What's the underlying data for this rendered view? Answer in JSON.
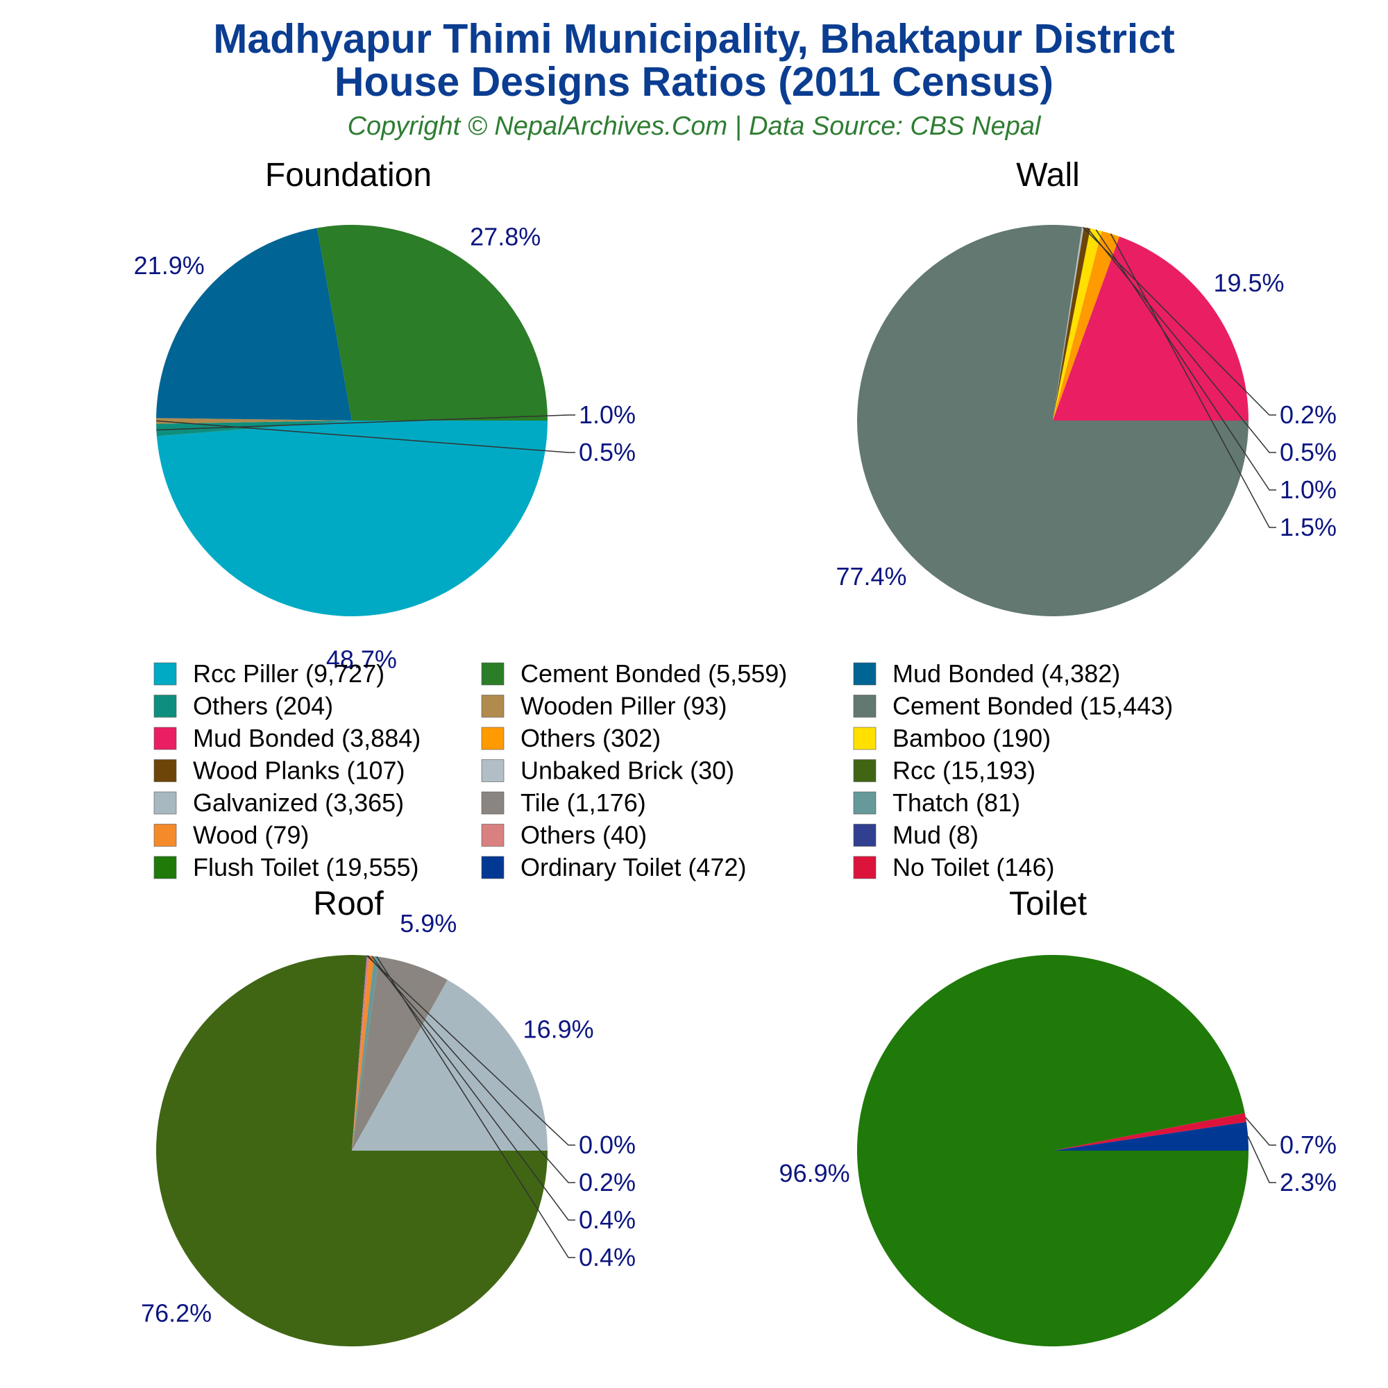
{
  "title_line1": "Madhyapur Thimi Municipality, Bhaktapur District",
  "title_line2": "House Designs Ratios (2011 Census)",
  "subtitle": "Copyright © NepalArchives.Com | Data Source: CBS Nepal",
  "chart_data": [
    {
      "type": "pie",
      "title": "Foundation",
      "slices": [
        {
          "label": "Rcc Piller",
          "value": 9727,
          "pct": "48.7%",
          "color": "#00aac4"
        },
        {
          "label": "Others",
          "value": 204,
          "pct": "1.0%",
          "color": "#0e8f7e"
        },
        {
          "label": "Wooden Piller",
          "value": 93,
          "pct": "0.5%",
          "color": "#b08b4d"
        },
        {
          "label": "Mud Bonded",
          "value": 4382,
          "pct": "21.9%",
          "color": "#006494"
        },
        {
          "label": "Cement Bonded",
          "value": 5559,
          "pct": "27.8%",
          "color": "#2b7d27"
        }
      ]
    },
    {
      "type": "pie",
      "title": "Wall",
      "slices": [
        {
          "label": "Cement Bonded",
          "value": 15443,
          "pct": "77.4%",
          "color": "#627870"
        },
        {
          "label": "Unbaked Brick",
          "value": 30,
          "pct": "0.2%",
          "color": "#b1bec5"
        },
        {
          "label": "Wood Planks",
          "value": 107,
          "pct": "0.5%",
          "color": "#6e4508"
        },
        {
          "label": "Bamboo",
          "value": 190,
          "pct": "1.0%",
          "color": "#ffe000"
        },
        {
          "label": "Others",
          "value": 302,
          "pct": "1.5%",
          "color": "#ff9a00"
        },
        {
          "label": "Mud Bonded",
          "value": 3884,
          "pct": "19.5%",
          "color": "#e91e63"
        }
      ]
    },
    {
      "type": "pie",
      "title": "Roof",
      "slices": [
        {
          "label": "Rcc",
          "value": 15193,
          "pct": "76.2%",
          "color": "#406614"
        },
        {
          "label": "Mud",
          "value": 8,
          "pct": "0.0%",
          "color": "#303f8f"
        },
        {
          "label": "Others",
          "value": 40,
          "pct": "0.2%",
          "color": "#d98080"
        },
        {
          "label": "Wood",
          "value": 79,
          "pct": "0.4%",
          "color": "#f58a2a"
        },
        {
          "label": "Thatch",
          "value": 81,
          "pct": "0.4%",
          "color": "#669999"
        },
        {
          "label": "Tile",
          "value": 1176,
          "pct": "5.9%",
          "color": "#8a8580"
        },
        {
          "label": "Galvanized",
          "value": 3365,
          "pct": "16.9%",
          "color": "#a8b8c0"
        }
      ]
    },
    {
      "type": "pie",
      "title": "Toilet",
      "slices": [
        {
          "label": "Flush Toilet",
          "value": 19555,
          "pct": "96.9%",
          "color": "#1f7a09"
        },
        {
          "label": "No Toilet",
          "value": 146,
          "pct": "0.7%",
          "color": "#dc143c"
        },
        {
          "label": "Ordinary Toilet",
          "value": 472,
          "pct": "2.3%",
          "color": "#003893"
        }
      ]
    }
  ],
  "legend": [
    {
      "label": "Rcc Piller (9,727)",
      "color": "#00aac4"
    },
    {
      "label": "Cement Bonded (5,559)",
      "color": "#2b7d27"
    },
    {
      "label": "Mud Bonded (4,382)",
      "color": "#006494"
    },
    {
      "label": "Others (204)",
      "color": "#0e8f7e"
    },
    {
      "label": "Wooden Piller (93)",
      "color": "#b08b4d"
    },
    {
      "label": "Cement Bonded (15,443)",
      "color": "#627870"
    },
    {
      "label": "Mud Bonded (3,884)",
      "color": "#e91e63"
    },
    {
      "label": "Others (302)",
      "color": "#ff9a00"
    },
    {
      "label": "Bamboo (190)",
      "color": "#ffe000"
    },
    {
      "label": "Wood Planks (107)",
      "color": "#6e4508"
    },
    {
      "label": "Unbaked Brick (30)",
      "color": "#b1bec5"
    },
    {
      "label": "Rcc (15,193)",
      "color": "#406614"
    },
    {
      "label": "Galvanized (3,365)",
      "color": "#a8b8c0"
    },
    {
      "label": "Tile (1,176)",
      "color": "#8a8580"
    },
    {
      "label": "Thatch (81)",
      "color": "#669999"
    },
    {
      "label": "Wood (79)",
      "color": "#f58a2a"
    },
    {
      "label": "Others (40)",
      "color": "#d98080"
    },
    {
      "label": "Mud (8)",
      "color": "#303f8f"
    },
    {
      "label": "Flush Toilet (19,555)",
      "color": "#1f7a09"
    },
    {
      "label": "Ordinary Toilet (472)",
      "color": "#003893"
    },
    {
      "label": "No Toilet (146)",
      "color": "#dc143c"
    }
  ]
}
